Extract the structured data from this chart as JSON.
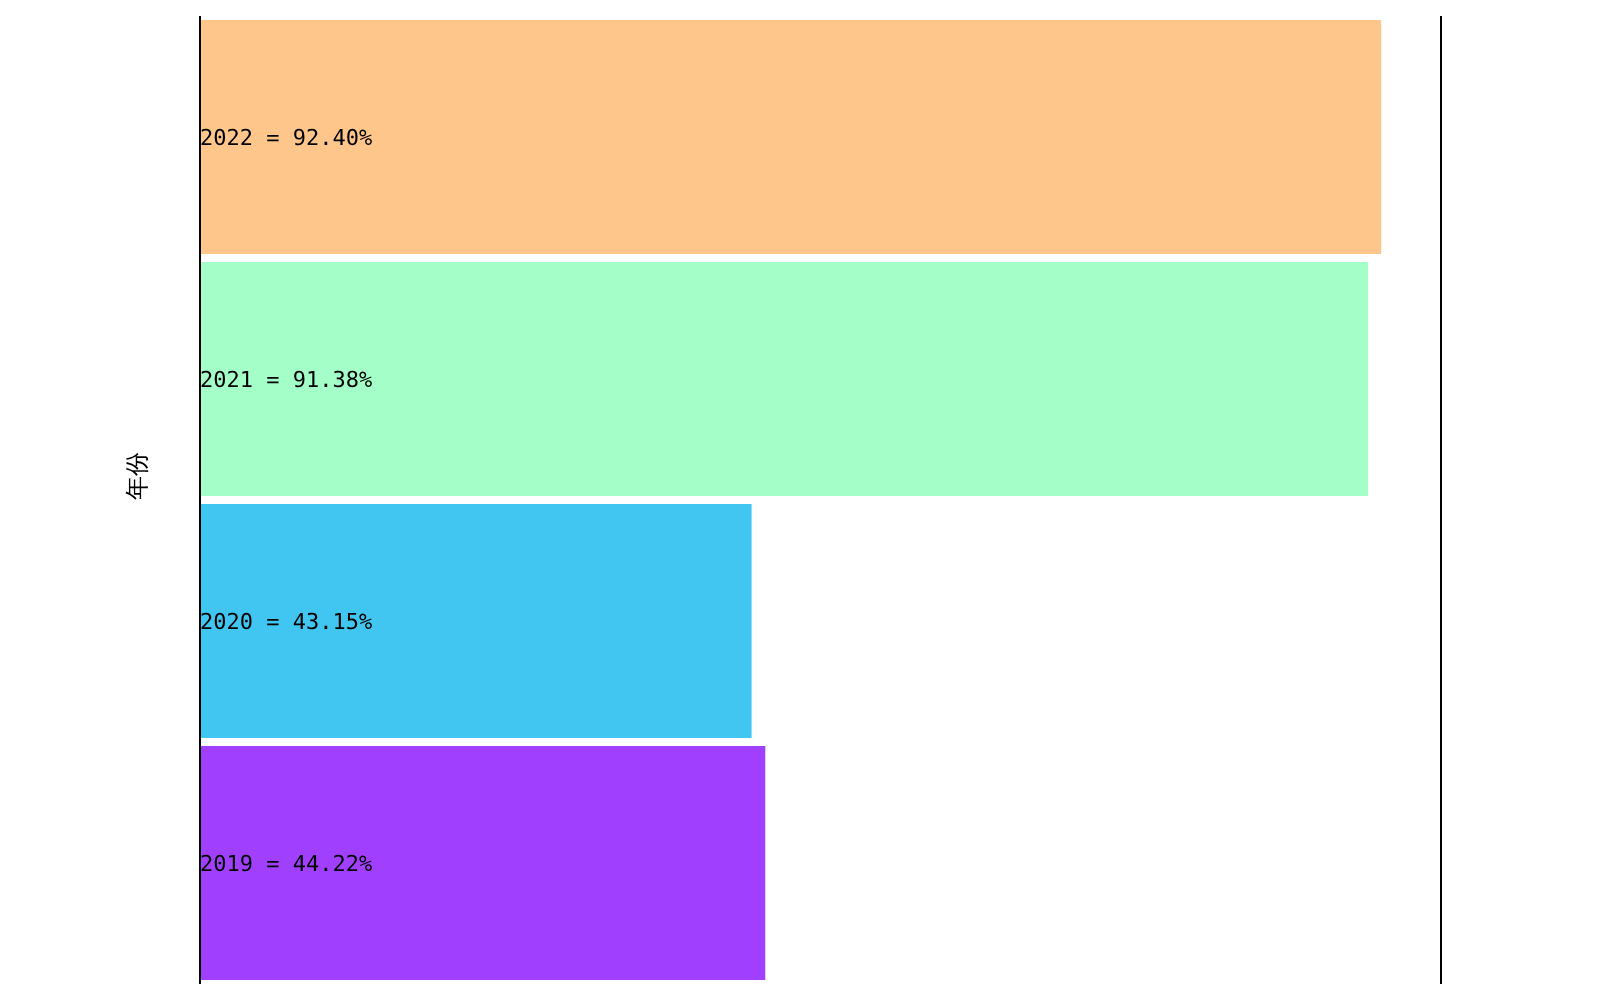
{
  "chart_data": {
    "type": "bar",
    "orientation": "horizontal",
    "ylabel": "年份",
    "categories": [
      null,
      null,
      null,
      null
    ],
    "values": [
      92.4,
      91.38,
      43.15,
      44.22
    ],
    "colors": [
      "#fec68a",
      "#a3fec8",
      "#40c6f0",
      "#a040fe"
    ],
    "value_labels": [
      "2022 = 92.40%",
      "2021 = 91.38%",
      "2020 = 43.15%",
      "2019 = 44.22%"
    ],
    "xlim": [
      0,
      97
    ]
  }
}
